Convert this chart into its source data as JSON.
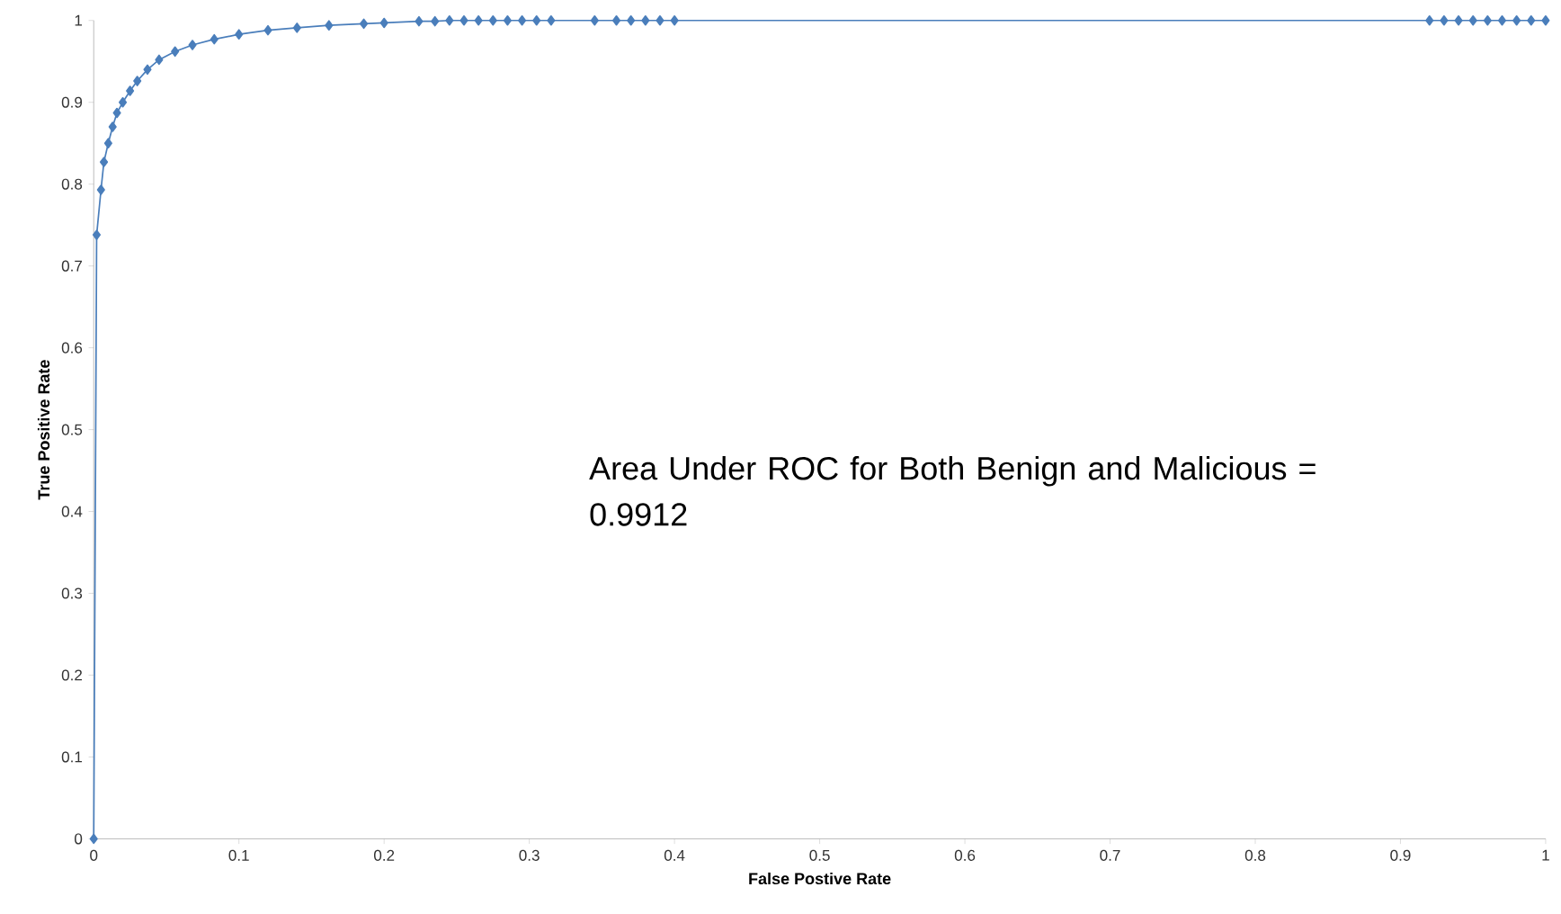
{
  "chart_data": {
    "type": "line",
    "xlabel": "False Postive Rate",
    "ylabel": "True Positive Rate",
    "annotations": [
      "Area Under ROC for Both Benign and Malicious = 0.9912"
    ],
    "xlim": [
      0,
      1
    ],
    "ylim": [
      0,
      1
    ],
    "xticks": [
      0,
      0.1,
      0.2,
      0.3,
      0.4,
      0.5,
      0.6,
      0.7,
      0.8,
      0.9,
      1
    ],
    "yticks": [
      0,
      0.1,
      0.2,
      0.3,
      0.4,
      0.5,
      0.6,
      0.7,
      0.8,
      0.9,
      1
    ],
    "marker": "diamond",
    "line_style": "solid",
    "series": [
      {
        "color": "#4a7ebb",
        "x": [
          0,
          0.002,
          0.005,
          0.007,
          0.01,
          0.013,
          0.016,
          0.02,
          0.025,
          0.03,
          0.037,
          0.045,
          0.056,
          0.068,
          0.083,
          0.1,
          0.12,
          0.14,
          0.162,
          0.186,
          0.2,
          0.224,
          0.235,
          0.245,
          0.255,
          0.265,
          0.275,
          0.285,
          0.295,
          0.305,
          0.315,
          0.345,
          0.36,
          0.37,
          0.38,
          0.39,
          0.4,
          0.92,
          0.93,
          0.94,
          0.95,
          0.96,
          0.97,
          0.98,
          0.99,
          1
        ],
        "values": [
          0,
          0.738,
          0.793,
          0.827,
          0.85,
          0.87,
          0.887,
          0.9,
          0.914,
          0.926,
          0.94,
          0.952,
          0.962,
          0.97,
          0.977,
          0.983,
          0.988,
          0.991,
          0.994,
          0.996,
          0.997,
          0.999,
          0.999,
          1,
          1,
          1,
          1,
          1,
          1,
          1,
          1,
          1,
          1,
          1,
          1,
          1,
          1,
          1,
          1,
          1,
          1,
          1,
          1,
          1,
          1,
          1
        ]
      }
    ]
  }
}
